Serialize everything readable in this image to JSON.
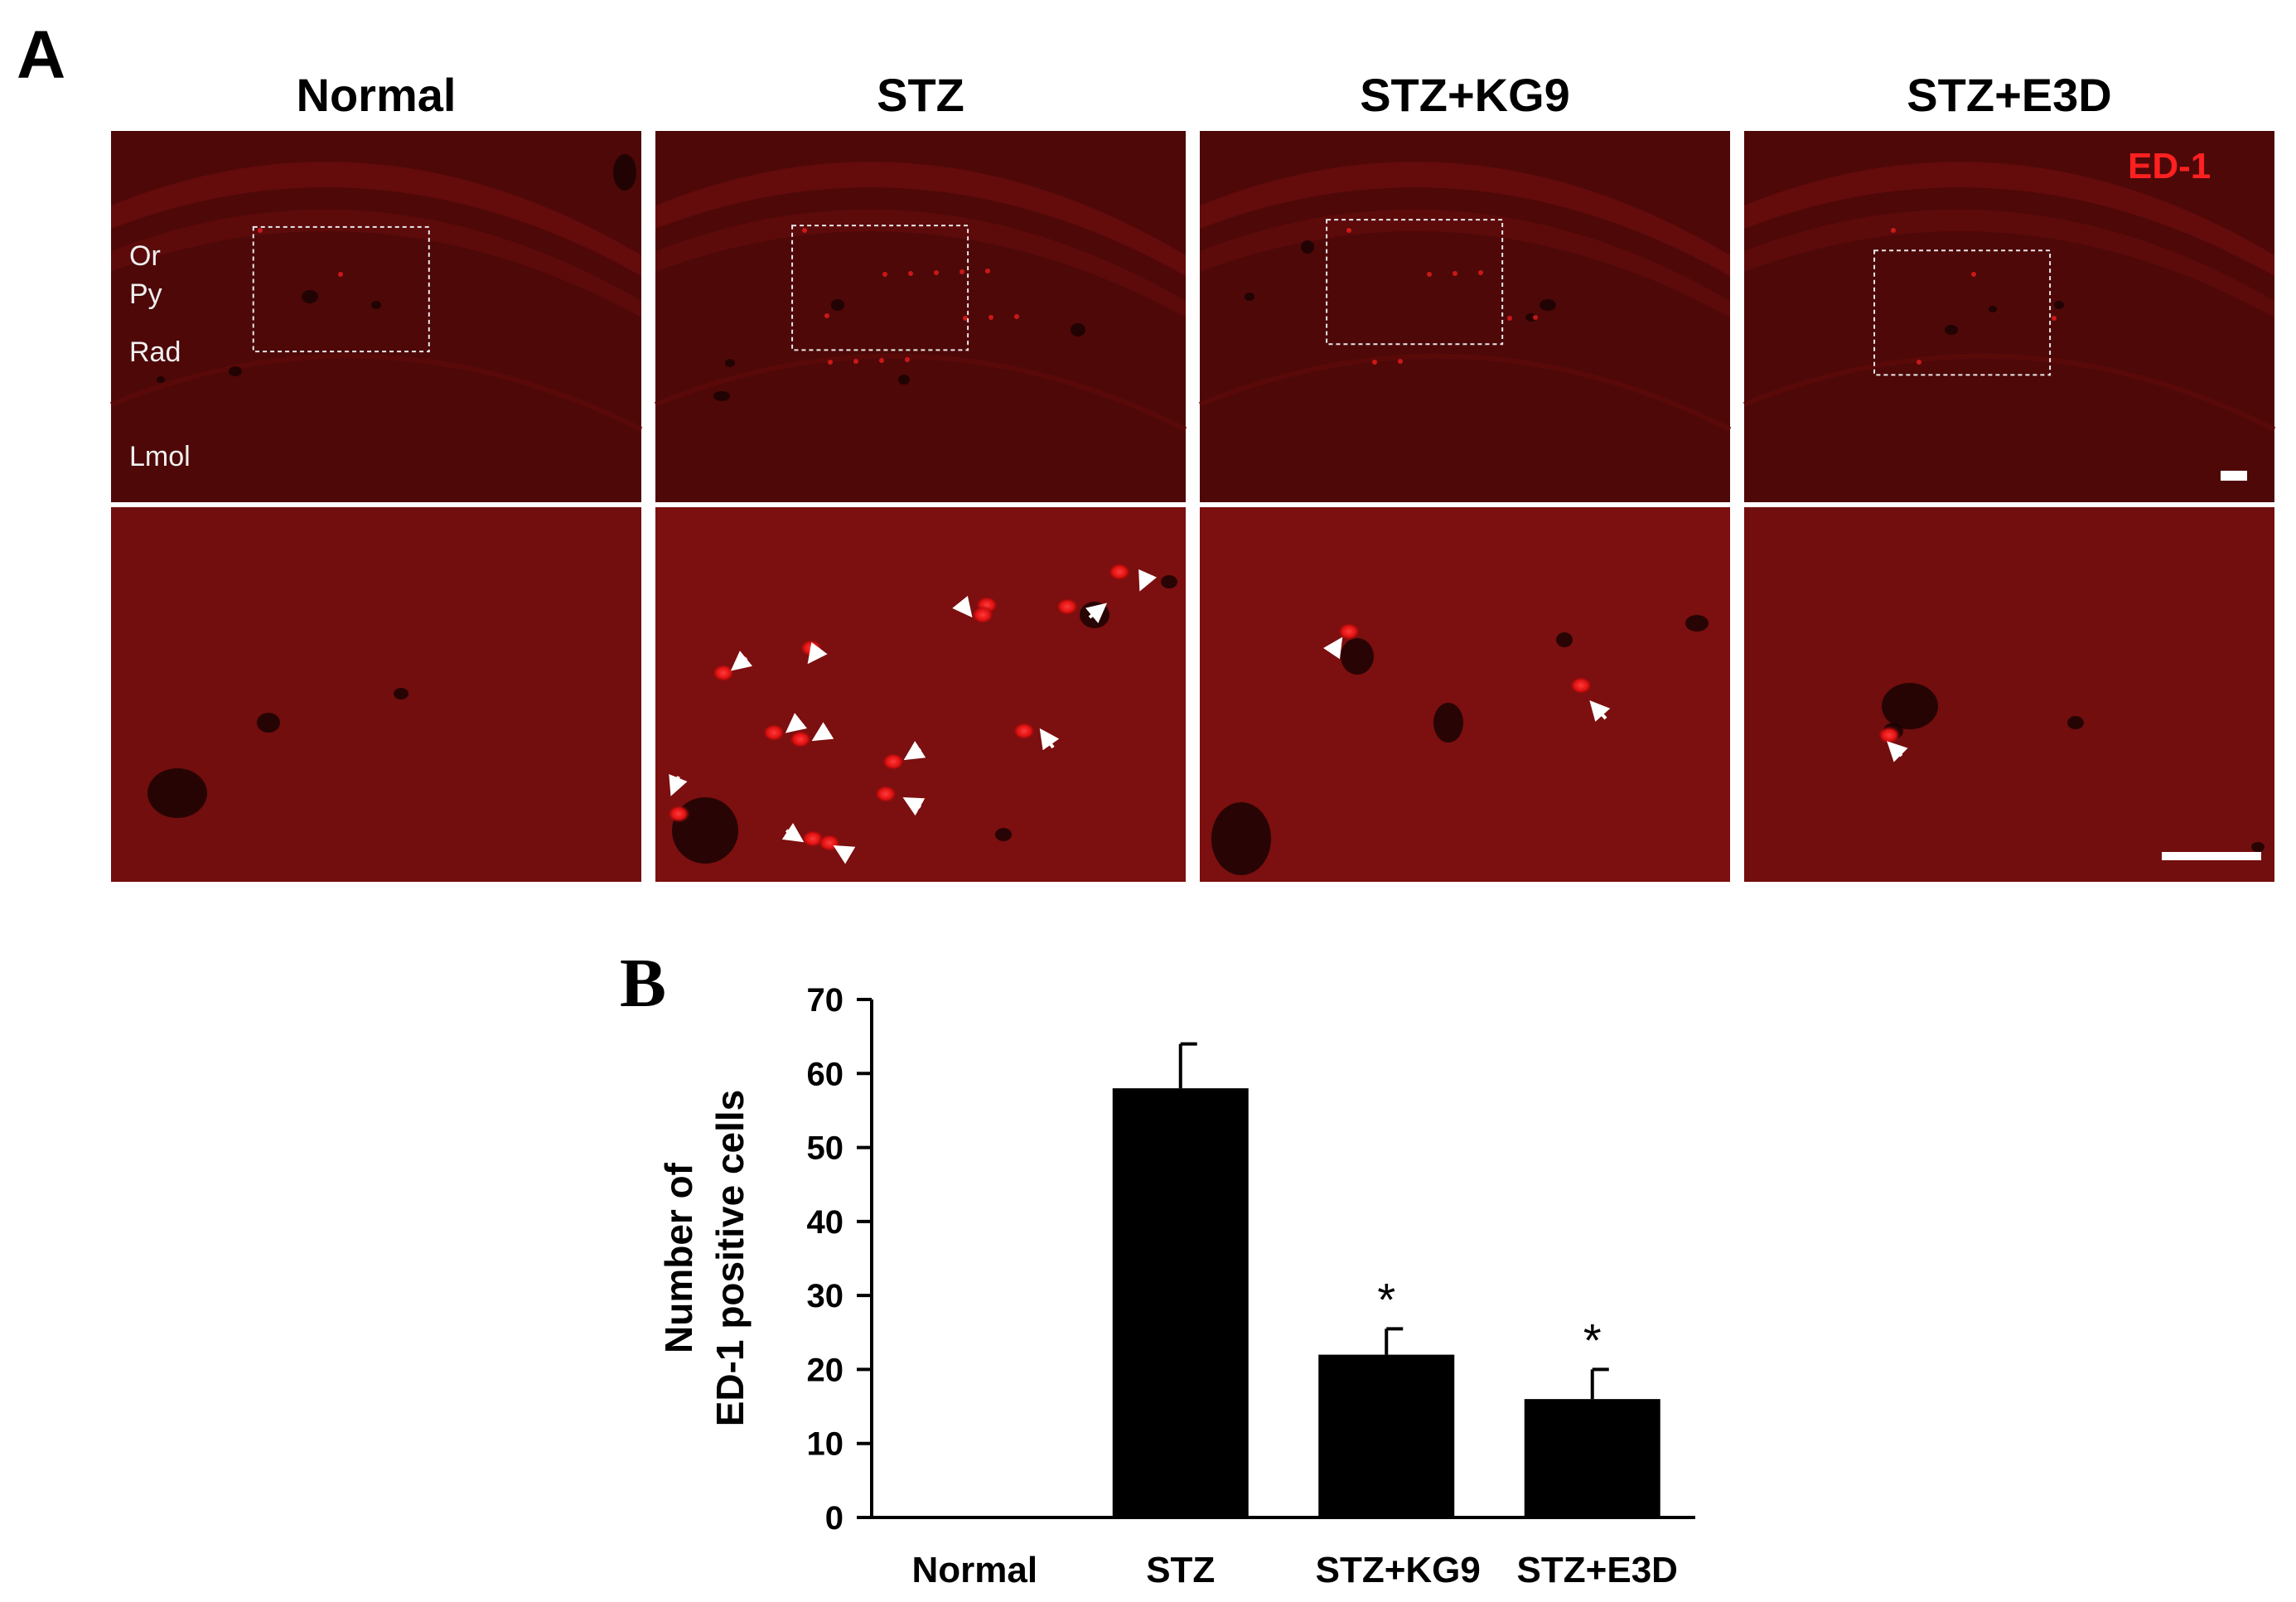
{
  "panel_a": {
    "letter": "A",
    "columns": [
      "Normal",
      "STZ",
      "STZ+KG9",
      "STZ+E3D"
    ],
    "layer_labels": [
      "Or",
      "Py",
      "Rad",
      "Lmol"
    ],
    "stain_label": "ED-1",
    "stain_color": "#ff2020",
    "tissue_color": "#5a0a0a",
    "positive_cells_marked": [
      0,
      14,
      2,
      1
    ]
  },
  "panel_b": {
    "letter": "B"
  },
  "chart_data": {
    "type": "bar",
    "categories": [
      "Normal",
      "STZ",
      "STZ+KG9",
      "STZ+E3D"
    ],
    "values": [
      0,
      58,
      22,
      16
    ],
    "errors": [
      0,
      6,
      3.5,
      4
    ],
    "significance": [
      "",
      "",
      "*",
      "*"
    ],
    "ylabel_lines": [
      "Number of",
      "ED-1 positive cells"
    ],
    "ylim": [
      0,
      70
    ],
    "yticks": [
      0,
      10,
      20,
      30,
      40,
      50,
      60,
      70
    ],
    "bar_color": "#000000",
    "grid": false
  }
}
